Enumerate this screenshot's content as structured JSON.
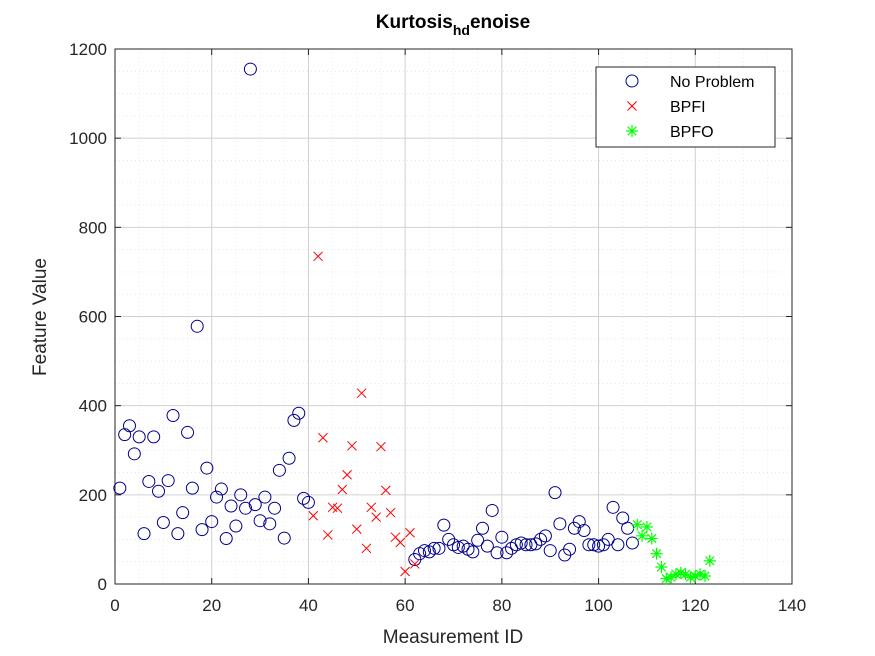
{
  "chart_data": {
    "type": "scatter",
    "title": {
      "main": "Kurtosis",
      "subscript": "hd",
      "suffix": "enoise"
    },
    "xlabel": "Measurement ID",
    "ylabel": "Feature Value",
    "xlim": [
      0,
      140
    ],
    "ylim": [
      0,
      1200
    ],
    "xticks": [
      "0",
      "20",
      "40",
      "60",
      "80",
      "100",
      "120",
      "140"
    ],
    "yticks": [
      "0",
      "200",
      "400",
      "600",
      "800",
      "1000",
      "1200"
    ],
    "grid": true,
    "legend_position": "top-right",
    "series": [
      {
        "name": "No Problem",
        "marker": "circle",
        "color": "#00008B",
        "points": [
          [
            1,
            215
          ],
          [
            2,
            335
          ],
          [
            3,
            355
          ],
          [
            4,
            292
          ],
          [
            5,
            330
          ],
          [
            6,
            113
          ],
          [
            7,
            230
          ],
          [
            8,
            330
          ],
          [
            9,
            208
          ],
          [
            10,
            138
          ],
          [
            11,
            232
          ],
          [
            12,
            378
          ],
          [
            13,
            113
          ],
          [
            14,
            160
          ],
          [
            15,
            340
          ],
          [
            16,
            215
          ],
          [
            17,
            578
          ],
          [
            18,
            122
          ],
          [
            19,
            260
          ],
          [
            20,
            140
          ],
          [
            21,
            195
          ],
          [
            22,
            213
          ],
          [
            23,
            102
          ],
          [
            24,
            175
          ],
          [
            25,
            130
          ],
          [
            26,
            200
          ],
          [
            27,
            170
          ],
          [
            28,
            1155
          ],
          [
            29,
            178
          ],
          [
            30,
            142
          ],
          [
            31,
            195
          ],
          [
            32,
            135
          ],
          [
            33,
            170
          ],
          [
            34,
            255
          ],
          [
            35,
            103
          ],
          [
            36,
            282
          ],
          [
            37,
            367
          ],
          [
            38,
            383
          ],
          [
            39,
            192
          ],
          [
            40,
            183
          ],
          [
            62,
            55
          ],
          [
            63,
            68
          ],
          [
            64,
            75
          ],
          [
            65,
            72
          ],
          [
            66,
            80
          ],
          [
            67,
            80
          ],
          [
            68,
            132
          ],
          [
            69,
            100
          ],
          [
            70,
            88
          ],
          [
            71,
            82
          ],
          [
            72,
            85
          ],
          [
            73,
            78
          ],
          [
            74,
            72
          ],
          [
            75,
            98
          ],
          [
            76,
            125
          ],
          [
            77,
            85
          ],
          [
            78,
            165
          ],
          [
            79,
            70
          ],
          [
            80,
            105
          ],
          [
            81,
            70
          ],
          [
            82,
            80
          ],
          [
            83,
            88
          ],
          [
            84,
            92
          ],
          [
            85,
            88
          ],
          [
            86,
            88
          ],
          [
            87,
            90
          ],
          [
            88,
            100
          ],
          [
            89,
            108
          ],
          [
            90,
            75
          ],
          [
            91,
            205
          ],
          [
            92,
            135
          ],
          [
            93,
            65
          ],
          [
            94,
            78
          ],
          [
            95,
            125
          ],
          [
            96,
            140
          ],
          [
            97,
            120
          ],
          [
            98,
            88
          ],
          [
            99,
            88
          ],
          [
            100,
            85
          ],
          [
            101,
            88
          ],
          [
            102,
            100
          ],
          [
            103,
            172
          ],
          [
            104,
            88
          ],
          [
            105,
            148
          ],
          [
            106,
            125
          ],
          [
            107,
            92
          ]
        ]
      },
      {
        "name": "BPFI",
        "marker": "x",
        "color": "#FF0000",
        "points": [
          [
            41,
            153
          ],
          [
            42,
            735
          ],
          [
            43,
            328
          ],
          [
            44,
            110
          ],
          [
            45,
            172
          ],
          [
            46,
            170
          ],
          [
            47,
            212
          ],
          [
            48,
            245
          ],
          [
            49,
            310
          ],
          [
            50,
            123
          ],
          [
            51,
            428
          ],
          [
            52,
            80
          ],
          [
            53,
            172
          ],
          [
            54,
            150
          ],
          [
            55,
            308
          ],
          [
            56,
            210
          ],
          [
            57,
            160
          ],
          [
            58,
            105
          ],
          [
            59,
            93
          ],
          [
            60,
            28
          ],
          [
            61,
            115
          ],
          [
            62,
            45
          ]
        ]
      },
      {
        "name": "BPFO",
        "marker": "asterisk",
        "color": "#00FF00",
        "points": [
          [
            108,
            133
          ],
          [
            109,
            108
          ],
          [
            110,
            128
          ],
          [
            111,
            102
          ],
          [
            112,
            68
          ],
          [
            113,
            38
          ],
          [
            114,
            12
          ],
          [
            115,
            15
          ],
          [
            116,
            22
          ],
          [
            117,
            25
          ],
          [
            118,
            22
          ],
          [
            119,
            15
          ],
          [
            120,
            18
          ],
          [
            121,
            22
          ],
          [
            122,
            18
          ],
          [
            123,
            52
          ]
        ]
      }
    ]
  }
}
